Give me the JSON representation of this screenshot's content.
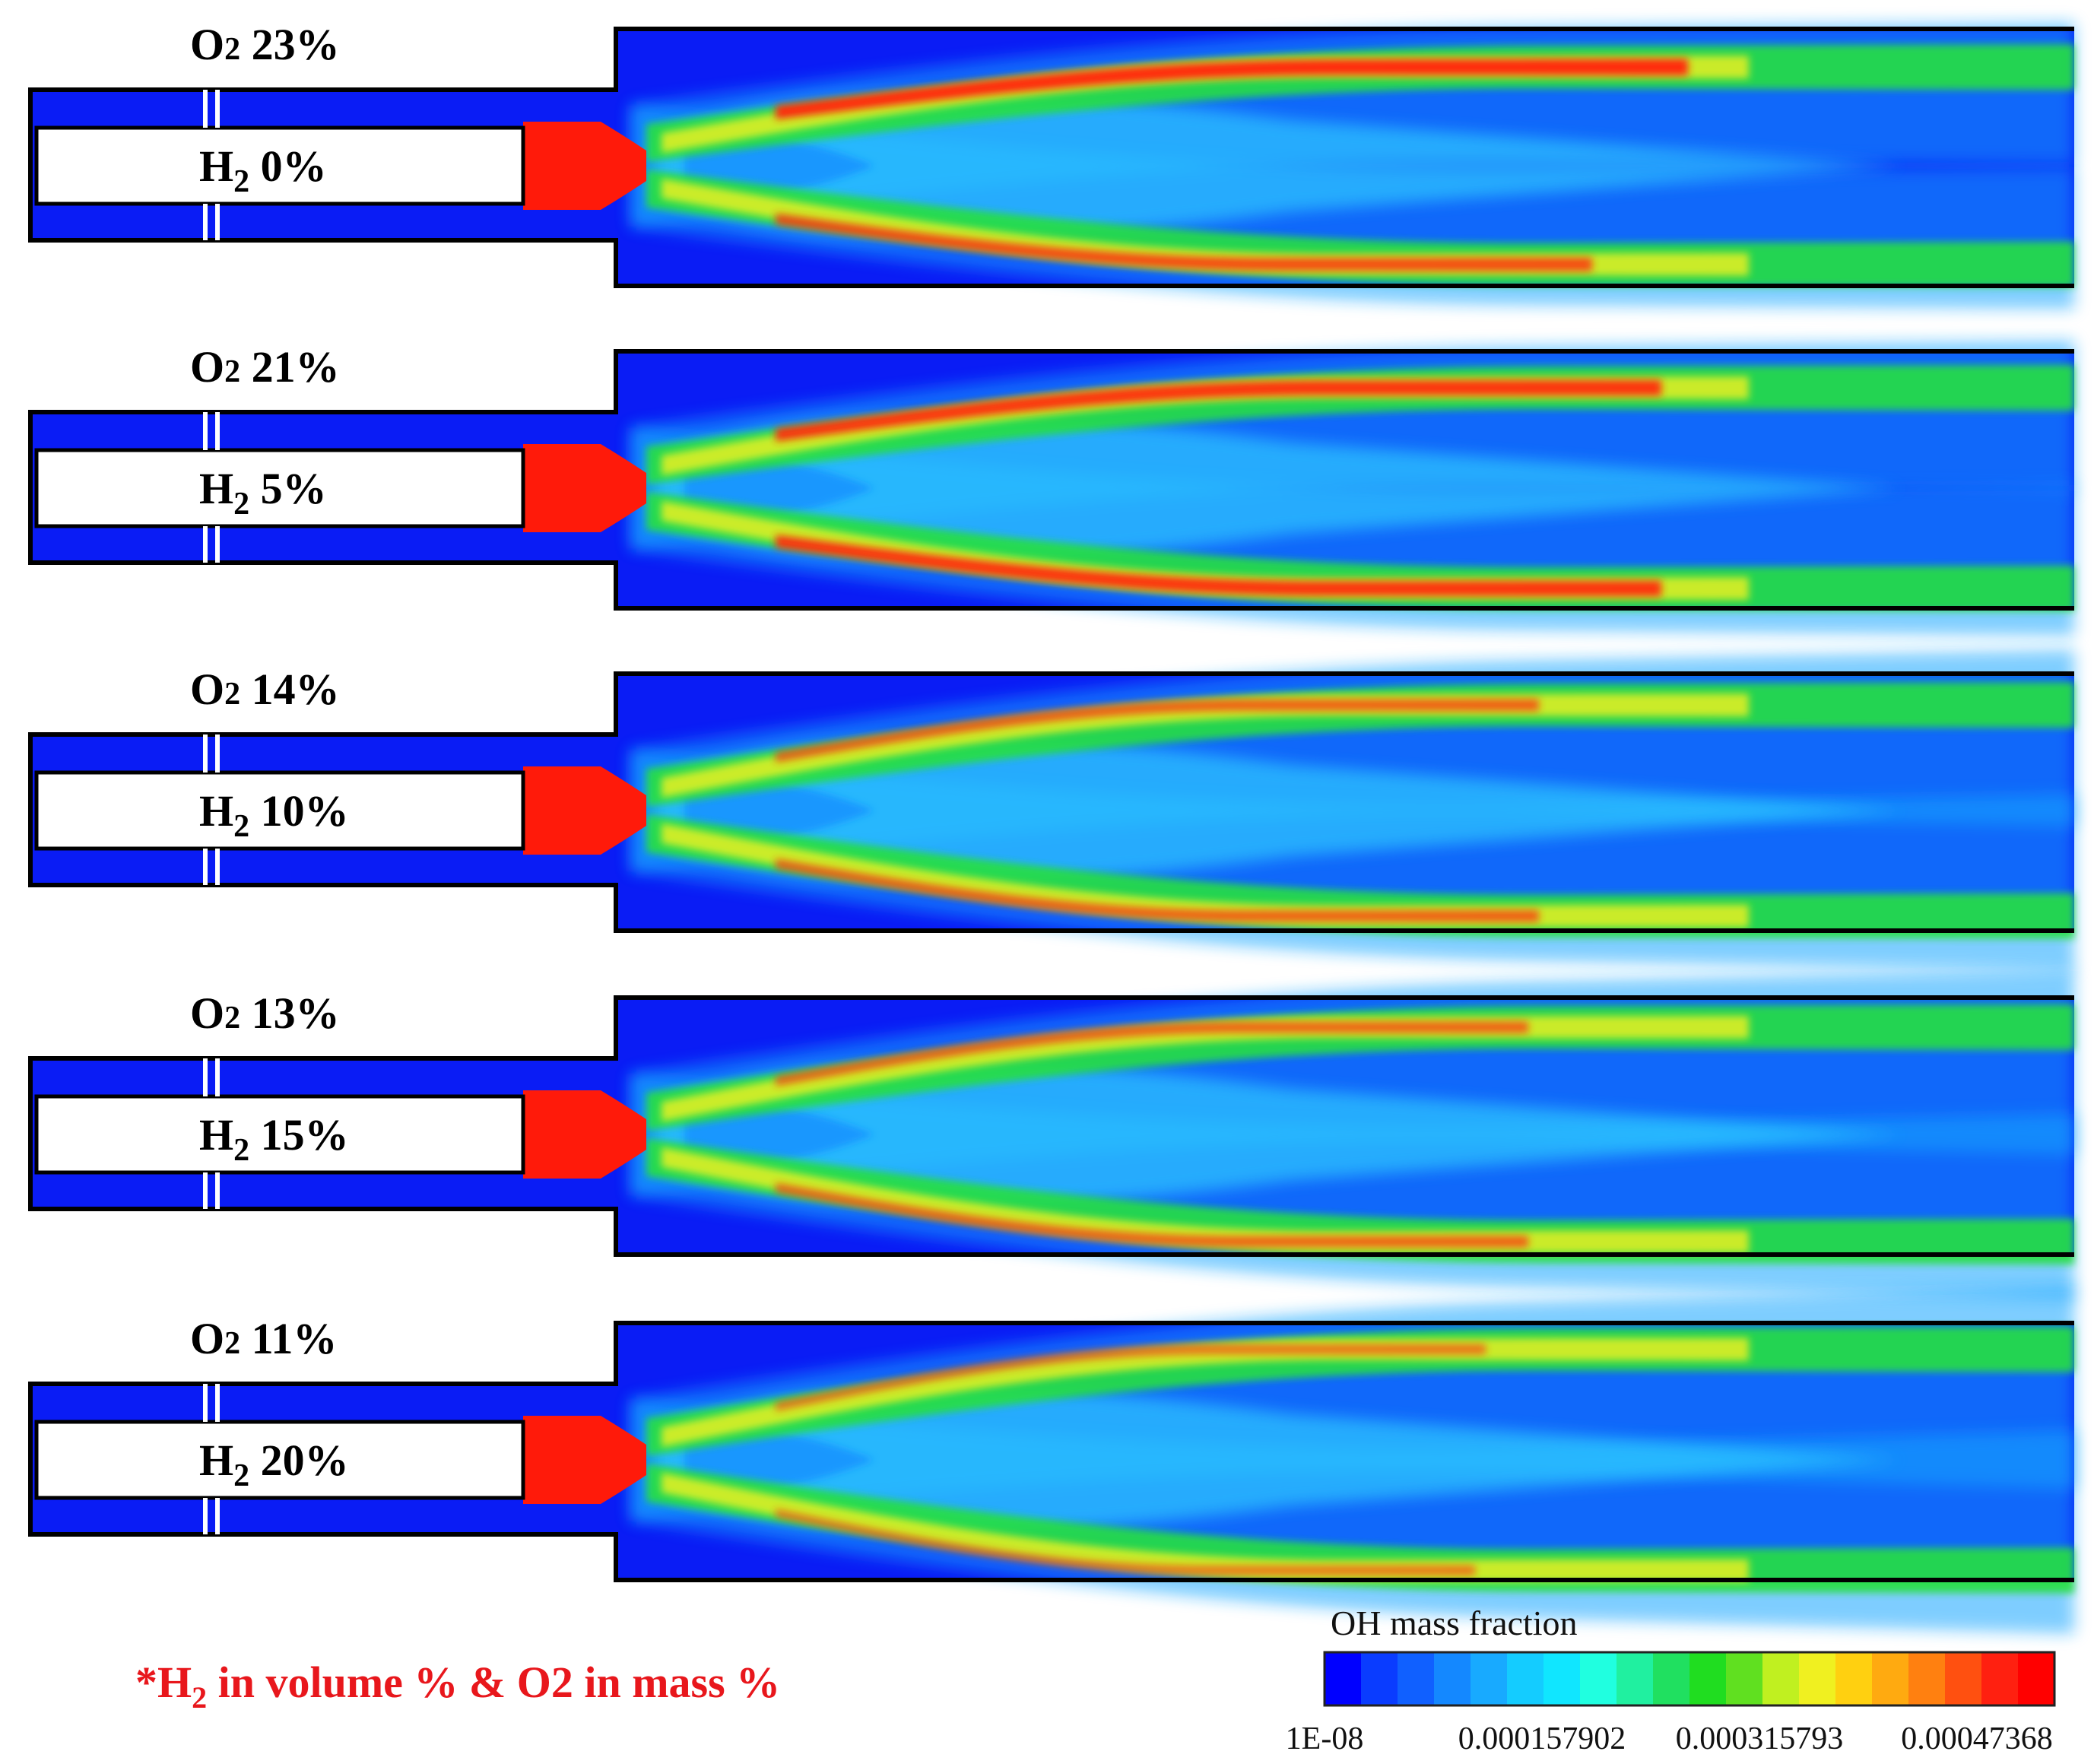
{
  "cases": [
    {
      "o2": "O",
      "o2_sub": "2",
      "o2_pct": " 23%",
      "h2": "H",
      "h2_sub": "2",
      "h2_pct": " 0%",
      "upper_peak": 1.0,
      "lower_peak": 0.82,
      "spread": 0.55,
      "inlet_text": "H2 0%"
    },
    {
      "o2": "O",
      "o2_sub": "2",
      "o2_pct": " 21%",
      "h2": "H",
      "h2_sub": "2",
      "h2_pct": " 5%",
      "upper_peak": 0.95,
      "lower_peak": 0.95,
      "spread": 0.6
    },
    {
      "o2": "O",
      "o2_sub": "2",
      "o2_pct": " 14%",
      "h2": "H",
      "h2_sub": "2",
      "h2_pct": " 10%",
      "upper_peak": 0.72,
      "lower_peak": 0.72,
      "spread": 0.75
    },
    {
      "o2": "O",
      "o2_sub": "2",
      "o2_pct": " 13%",
      "h2": "H",
      "h2_sub": "2",
      "h2_pct": " 15%",
      "upper_peak": 0.7,
      "lower_peak": 0.7,
      "spread": 0.8
    },
    {
      "o2": "O",
      "o2_sub": "2",
      "o2_pct": " 11%",
      "h2": "H",
      "h2_sub": "2",
      "h2_pct": " 20%",
      "upper_peak": 0.62,
      "lower_peak": 0.6,
      "spread": 0.9
    }
  ],
  "note": {
    "prefix": "*H",
    "sub": "2",
    "rest": " in volume %  & O2 in mass %",
    "color": "#e8171c"
  },
  "colorbar": {
    "title": "OH mass fraction",
    "ticks": [
      "1E-08",
      "0.000157902",
      "0.000315793",
      "0.00047368"
    ],
    "tick_values": [
      1e-08,
      0.000157902,
      0.000315793,
      0.00047368
    ],
    "min": 1e-08,
    "max": 0.00053,
    "colors": [
      "#0000ff",
      "#0a3cff",
      "#1060ff",
      "#1488ff",
      "#18aaff",
      "#14ccff",
      "#10e6ff",
      "#20ffe0",
      "#20f0a0",
      "#20e060",
      "#20dd20",
      "#60e020",
      "#c0f020",
      "#f0f020",
      "#ffd010",
      "#ffaa10",
      "#ff8010",
      "#ff5010",
      "#ff2010",
      "#ff0000"
    ]
  }
}
